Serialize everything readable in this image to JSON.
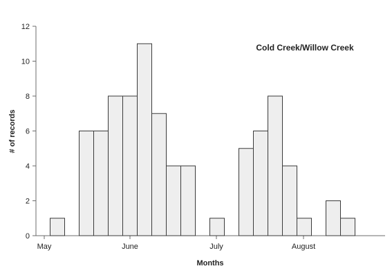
{
  "chart_data": {
    "type": "bar",
    "title": "Cold Creek/Willow Creek",
    "xlabel": "Months",
    "ylabel": "# of records",
    "ylim": [
      0,
      12
    ],
    "yticks": [
      0,
      2,
      4,
      6,
      8,
      10,
      12
    ],
    "grid": false,
    "month_labels": [
      "May",
      "June",
      "July",
      "August"
    ],
    "values": [
      1,
      0,
      6,
      6,
      8,
      8,
      11,
      7,
      4,
      4,
      0,
      1,
      0,
      5,
      6,
      8,
      4,
      1,
      0,
      2,
      1
    ],
    "colors": {
      "bar_fill": "#eeeeee",
      "bar_stroke": "#3a3a3a",
      "axis": "#6b6b6b",
      "text": "#222222"
    }
  }
}
